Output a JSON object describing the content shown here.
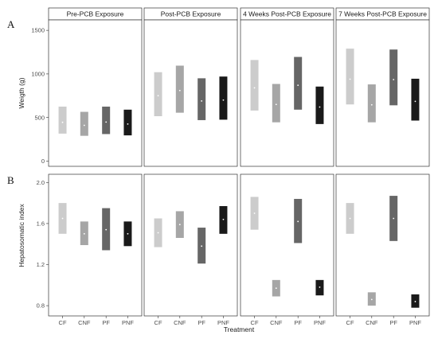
{
  "figure": {
    "panel_letters": [
      "A",
      "B"
    ],
    "xlabel": "Treatment"
  },
  "chart_data": [
    {
      "type": "bar",
      "panel": "A",
      "ylabel": "Weigth (g)",
      "ylim": [
        -60,
        1620
      ],
      "yticks": [
        0,
        500,
        1000,
        1500
      ],
      "categories": [
        "CF",
        "CNF",
        "PF",
        "PNF"
      ],
      "colors": [
        "#cccccc",
        "#a6a6a6",
        "#666666",
        "#1a1a1a"
      ],
      "facets": [
        {
          "label": "Pre-PCB Exposure",
          "series": [
            {
              "category": "CF",
              "low": 315,
              "high": 625,
              "mean": 445
            },
            {
              "category": "CNF",
              "low": 290,
              "high": 565,
              "mean": 410
            },
            {
              "category": "PF",
              "low": 310,
              "high": 625,
              "mean": 448
            },
            {
              "category": "PNF",
              "low": 295,
              "high": 590,
              "mean": 425
            }
          ]
        },
        {
          "label": "Post-PCB Exposure",
          "series": [
            {
              "category": "CF",
              "low": 515,
              "high": 1020,
              "mean": 750
            },
            {
              "category": "CNF",
              "low": 555,
              "high": 1095,
              "mean": 810
            },
            {
              "category": "PF",
              "low": 470,
              "high": 950,
              "mean": 690
            },
            {
              "category": "PNF",
              "low": 475,
              "high": 970,
              "mean": 700
            }
          ]
        },
        {
          "label": "4 Weeks Post-PCB Exposure",
          "series": [
            {
              "category": "CF",
              "low": 580,
              "high": 1160,
              "mean": 840
            },
            {
              "category": "CNF",
              "low": 445,
              "high": 885,
              "mean": 650
            },
            {
              "category": "PF",
              "low": 590,
              "high": 1195,
              "mean": 870
            },
            {
              "category": "PNF",
              "low": 425,
              "high": 855,
              "mean": 620
            }
          ]
        },
        {
          "label": "7 Weeks Post-PCB Exposure",
          "series": [
            {
              "category": "CF",
              "low": 650,
              "high": 1290,
              "mean": 940
            },
            {
              "category": "CNF",
              "low": 445,
              "high": 880,
              "mean": 645
            },
            {
              "category": "PF",
              "low": 640,
              "high": 1280,
              "mean": 935
            },
            {
              "category": "PNF",
              "low": 465,
              "high": 945,
              "mean": 685
            }
          ]
        }
      ]
    },
    {
      "type": "bar",
      "panel": "B",
      "ylabel": "Hepatosomatic index",
      "ylim": [
        0.7,
        2.08
      ],
      "yticks": [
        0.8,
        1.2,
        1.6,
        2.0
      ],
      "ytick_labels": [
        "0.8",
        "1.2",
        "1.6",
        "2.0"
      ],
      "categories": [
        "CF",
        "CNF",
        "PF",
        "PNF"
      ],
      "colors": [
        "#cccccc",
        "#a6a6a6",
        "#666666",
        "#1a1a1a"
      ],
      "facets": [
        {
          "label": "",
          "series": [
            {
              "category": "CF",
              "low": 1.5,
              "high": 1.8,
              "mean": 1.65
            },
            {
              "category": "CNF",
              "low": 1.39,
              "high": 1.62,
              "mean": 1.5
            },
            {
              "category": "PF",
              "low": 1.34,
              "high": 1.75,
              "mean": 1.54
            },
            {
              "category": "PNF",
              "low": 1.38,
              "high": 1.62,
              "mean": 1.5
            }
          ]
        },
        {
          "label": "",
          "series": [
            {
              "category": "CF",
              "low": 1.37,
              "high": 1.65,
              "mean": 1.51
            },
            {
              "category": "CNF",
              "low": 1.46,
              "high": 1.72,
              "mean": 1.59
            },
            {
              "category": "PF",
              "low": 1.21,
              "high": 1.56,
              "mean": 1.38
            },
            {
              "category": "PNF",
              "low": 1.5,
              "high": 1.77,
              "mean": 1.64
            }
          ]
        },
        {
          "label": "",
          "series": [
            {
              "category": "CF",
              "low": 1.54,
              "high": 1.86,
              "mean": 1.7
            },
            {
              "category": "CNF",
              "low": 0.89,
              "high": 1.05,
              "mean": 0.97
            },
            {
              "category": "PF",
              "low": 1.41,
              "high": 1.84,
              "mean": 1.62
            },
            {
              "category": "PNF",
              "low": 0.9,
              "high": 1.05,
              "mean": 0.98
            }
          ]
        },
        {
          "label": "",
          "series": [
            {
              "category": "CF",
              "low": 1.5,
              "high": 1.8,
              "mean": 1.65
            },
            {
              "category": "CNF",
              "low": 0.8,
              "high": 0.93,
              "mean": 0.86
            },
            {
              "category": "PF",
              "low": 1.43,
              "high": 1.87,
              "mean": 1.65
            },
            {
              "category": "PNF",
              "low": 0.78,
              "high": 0.91,
              "mean": 0.84
            }
          ]
        }
      ]
    }
  ]
}
